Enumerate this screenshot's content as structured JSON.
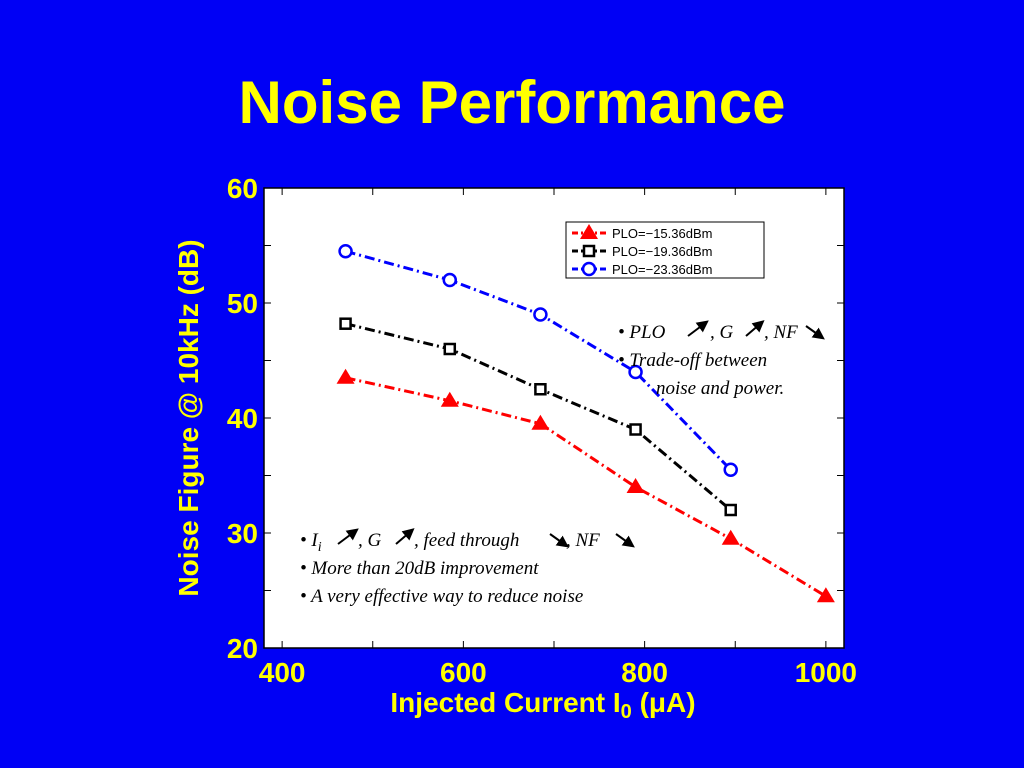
{
  "slide": {
    "title": "Noise Performance"
  },
  "chart_data": {
    "type": "line",
    "xlabel": "Injected Current I",
    "xlabel_sub": "0",
    "xlabel_unit": " (μA)",
    "ylabel": "Noise Figure @ 10kHz (dB)",
    "xlim": [
      380,
      1020
    ],
    "ylim": [
      20,
      60
    ],
    "xticks": [
      400,
      600,
      800,
      1000
    ],
    "yticks": [
      20,
      30,
      40,
      50,
      60
    ],
    "legend_position": "top-right",
    "series": [
      {
        "name": "PLO=−15.36dBm",
        "color": "#ff0000",
        "marker": "triangle",
        "x": [
          470,
          585,
          685,
          790,
          895,
          1000
        ],
        "y": [
          43.5,
          41.5,
          39.5,
          34,
          29.5,
          24.5
        ]
      },
      {
        "name": "PLO=−19.36dBm",
        "color": "#000000",
        "marker": "square",
        "x": [
          470,
          585,
          685,
          790,
          895
        ],
        "y": [
          48.2,
          46,
          42.5,
          39,
          32
        ]
      },
      {
        "name": "PLO=−23.36dBm",
        "color": "#0000ff",
        "marker": "circle",
        "x": [
          470,
          585,
          685,
          790,
          895
        ],
        "y": [
          54.5,
          52,
          49,
          44,
          35.5
        ]
      }
    ],
    "annotations": {
      "top_right": {
        "bullet1": {
          "prefix": "PLO",
          "mid1": ", G",
          "mid2": ", NF"
        },
        "bullet2_line1": "Trade-off  between",
        "bullet2_line2": "noise and power."
      },
      "bottom_left": {
        "bullet1": {
          "prefix": "I",
          "sub": "i",
          "mid1": ", G",
          "mid2": ", feed through",
          "mid3": ", NF"
        },
        "bullet2": "More than 20dB improvement",
        "bullet3": "A very effective way to reduce noise"
      }
    }
  }
}
